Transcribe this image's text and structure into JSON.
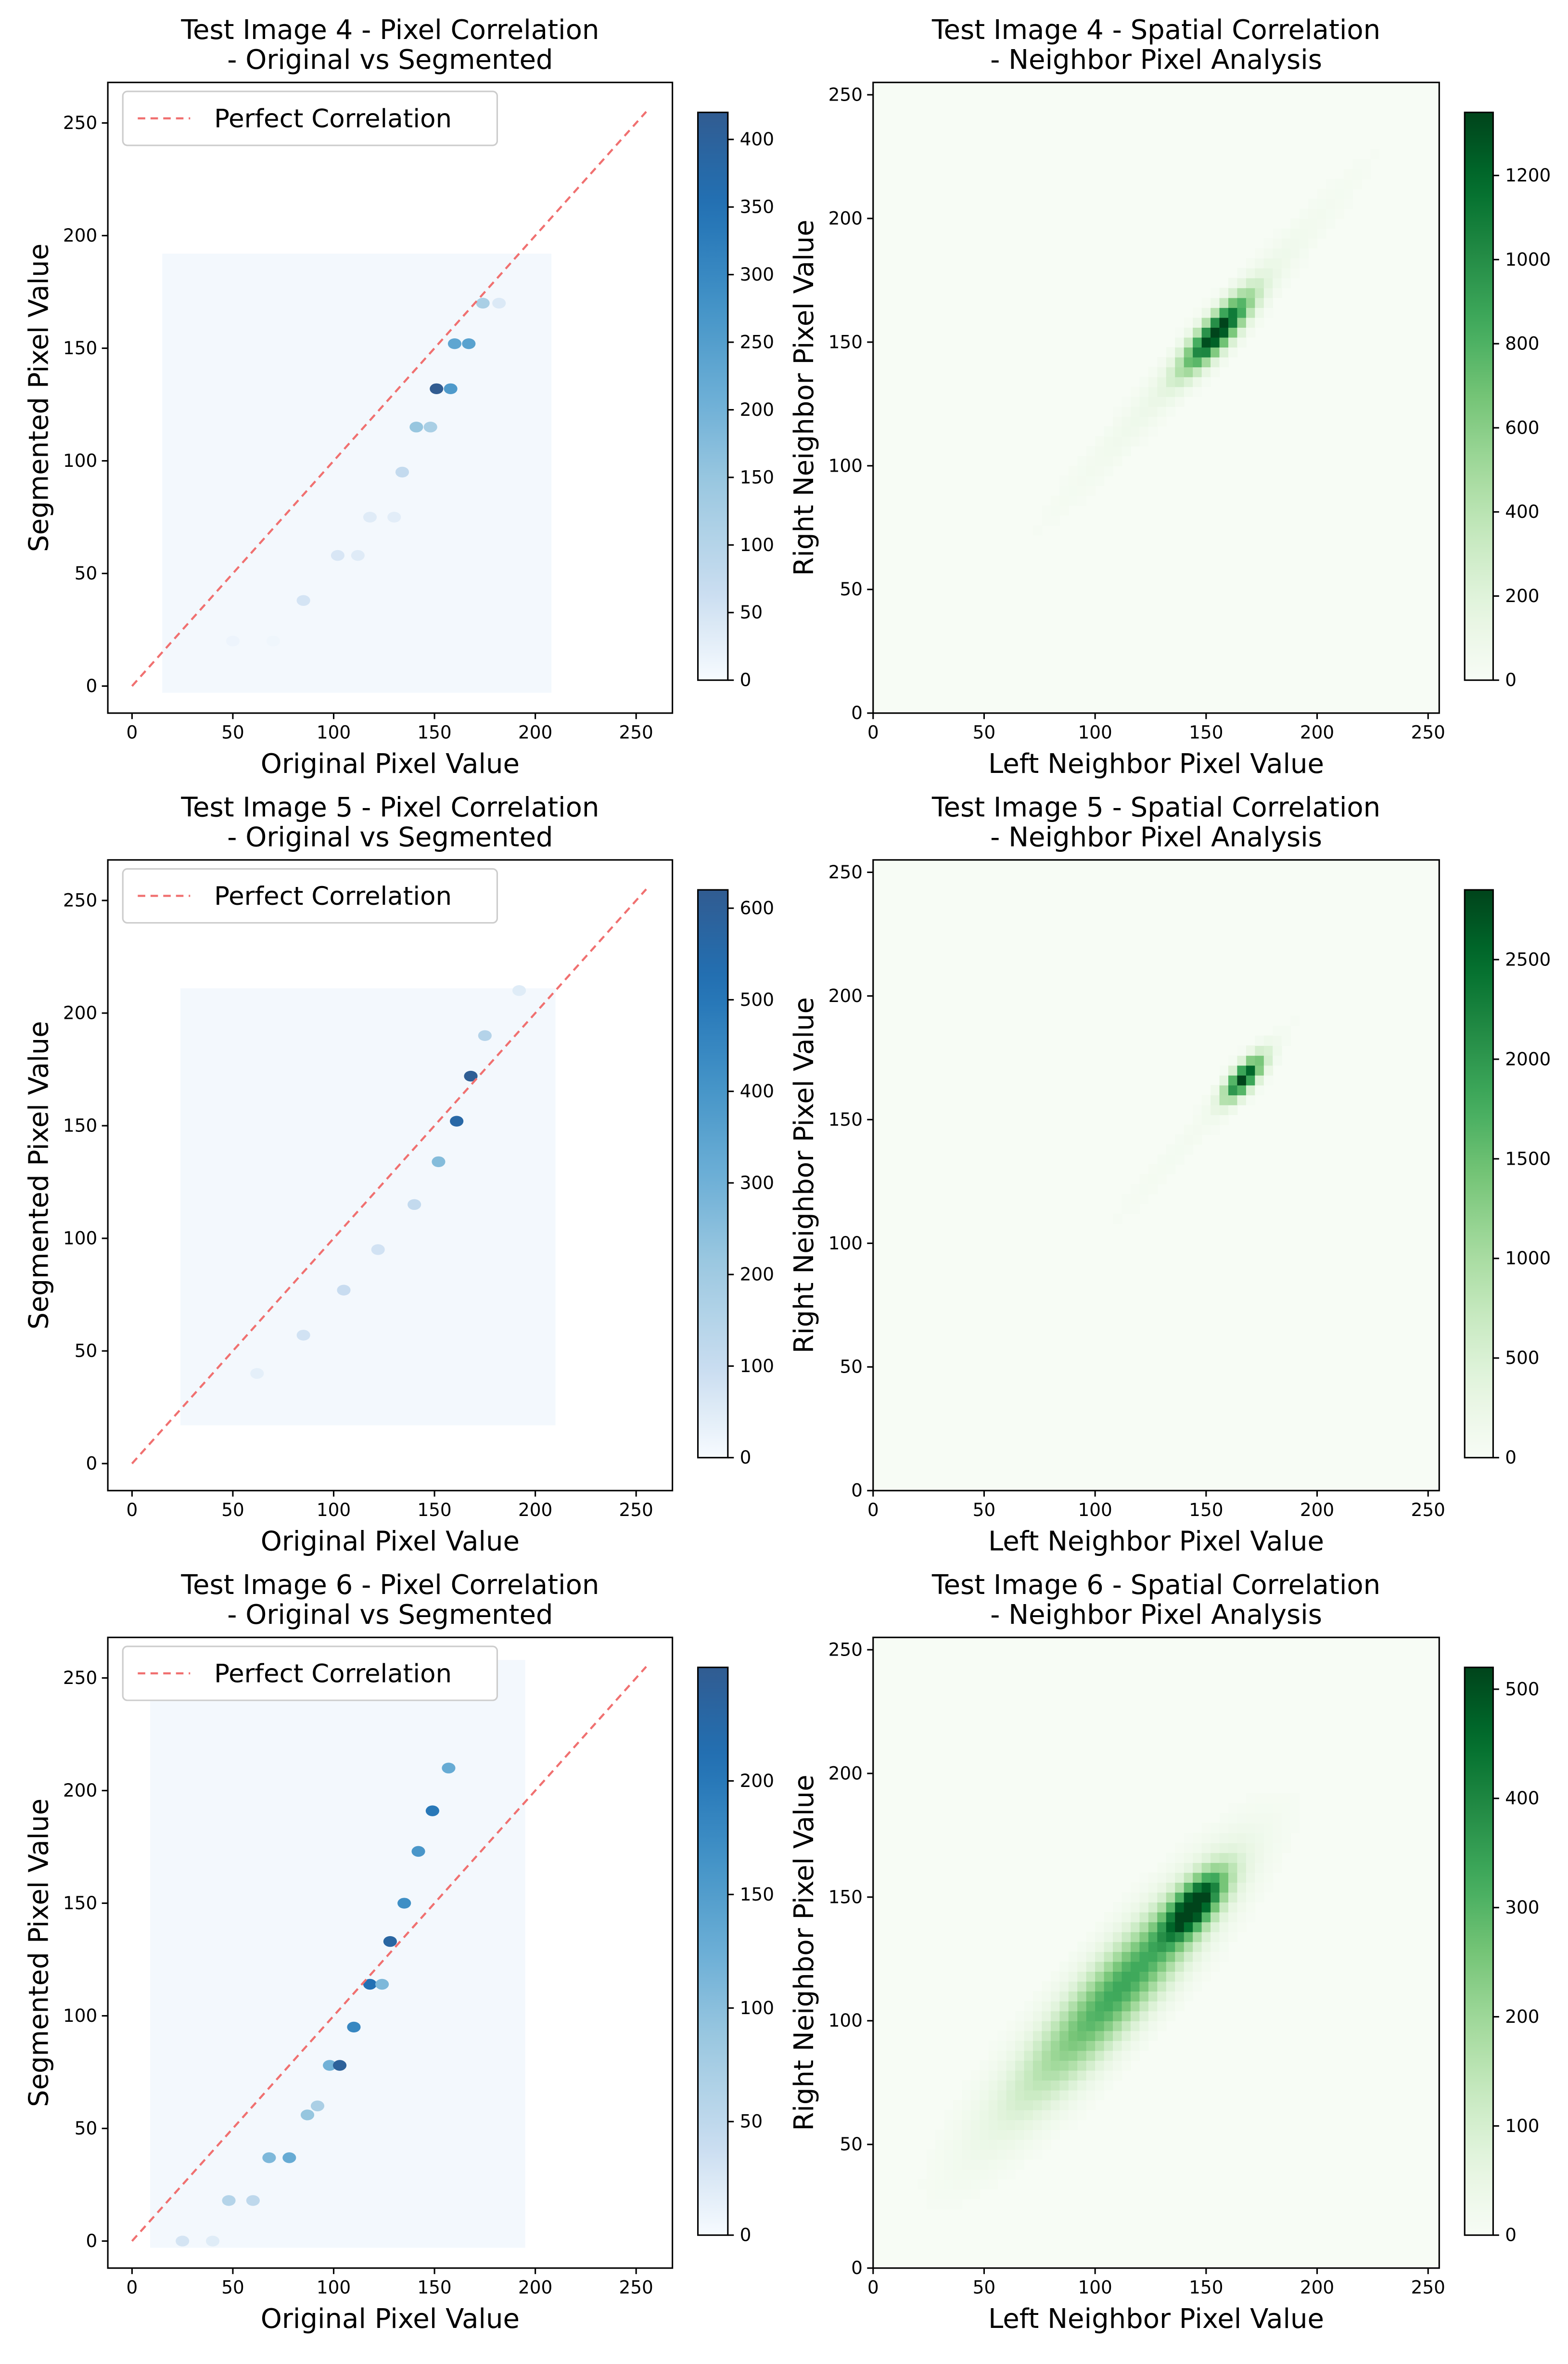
{
  "chart_data": [
    {
      "type": "heatmap",
      "title": "Test Image 4 - Pixel Correlation",
      "subtitle": "- Original vs Segmented",
      "xlabel": "Original Pixel Value",
      "ylabel": "Segmented Pixel Value",
      "xlim": [
        -12,
        268
      ],
      "ylim": [
        -12,
        268
      ],
      "xticks": [
        0,
        50,
        100,
        150,
        200,
        250
      ],
      "yticks": [
        0,
        50,
        100,
        150,
        200,
        250
      ],
      "colormap": "Blues",
      "colorbar": {
        "min": 0,
        "max": 420,
        "ticks": [
          0,
          50,
          100,
          150,
          200,
          250,
          300,
          350,
          400
        ]
      },
      "legend": {
        "label": "Perfect Correlation",
        "position": "upper-left",
        "color": "#f07070"
      },
      "reference_line": {
        "x": [
          0,
          255
        ],
        "y": [
          0,
          255
        ]
      },
      "support": {
        "x": [
          15,
          208
        ],
        "y": [
          -3,
          192
        ]
      },
      "clusters": [
        {
          "x": 50,
          "y": 20,
          "count": 15
        },
        {
          "x": 70,
          "y": 20,
          "count": 12
        },
        {
          "x": 85,
          "y": 38,
          "count": 50
        },
        {
          "x": 102,
          "y": 58,
          "count": 45
        },
        {
          "x": 112,
          "y": 58,
          "count": 35
        },
        {
          "x": 118,
          "y": 75,
          "count": 35
        },
        {
          "x": 130,
          "y": 75,
          "count": 30
        },
        {
          "x": 134,
          "y": 95,
          "count": 75
        },
        {
          "x": 141,
          "y": 115,
          "count": 150
        },
        {
          "x": 148,
          "y": 115,
          "count": 120
        },
        {
          "x": 151,
          "y": 132,
          "count": 420
        },
        {
          "x": 158,
          "y": 132,
          "count": 260
        },
        {
          "x": 160,
          "y": 152,
          "count": 230
        },
        {
          "x": 167,
          "y": 152,
          "count": 240
        },
        {
          "x": 174,
          "y": 170,
          "count": 120
        },
        {
          "x": 182,
          "y": 170,
          "count": 40
        }
      ]
    },
    {
      "type": "heatmap",
      "title": "Test Image 4 - Spatial Correlation",
      "subtitle": "- Neighbor Pixel Analysis",
      "xlabel": "Left Neighbor Pixel Value",
      "ylabel": "Right Neighbor Pixel Value",
      "xlim": [
        0,
        255
      ],
      "ylim": [
        0,
        255
      ],
      "xticks": [
        0,
        50,
        100,
        150,
        200,
        250
      ],
      "yticks": [
        0,
        50,
        100,
        150,
        200,
        250
      ],
      "colormap": "Greens",
      "colorbar": {
        "min": 0,
        "max": 1350,
        "ticks": [
          0,
          200,
          400,
          600,
          800,
          1000,
          1200
        ]
      },
      "components": [
        {
          "cx": 155,
          "cy": 154,
          "sigma_major": 14,
          "sigma_minor": 4,
          "peak": 1350
        },
        {
          "cx": 150,
          "cy": 150,
          "sigma_major": 55,
          "sigma_minor": 5,
          "peak": 110
        }
      ]
    },
    {
      "type": "heatmap",
      "title": "Test Image 5 - Pixel Correlation",
      "subtitle": "- Original vs Segmented",
      "xlabel": "Original Pixel Value",
      "ylabel": "Segmented Pixel Value",
      "xlim": [
        -12,
        268
      ],
      "ylim": [
        -12,
        268
      ],
      "xticks": [
        0,
        50,
        100,
        150,
        200,
        250
      ],
      "yticks": [
        0,
        50,
        100,
        150,
        200,
        250
      ],
      "colormap": "Blues",
      "colorbar": {
        "min": 0,
        "max": 620,
        "ticks": [
          0,
          100,
          200,
          300,
          400,
          500,
          600
        ]
      },
      "legend": {
        "label": "Perfect Correlation",
        "position": "upper-left",
        "color": "#f07070"
      },
      "reference_line": {
        "x": [
          0,
          255
        ],
        "y": [
          0,
          255
        ]
      },
      "support": {
        "x": [
          24,
          210
        ],
        "y": [
          17,
          211
        ]
      },
      "clusters": [
        {
          "x": 62,
          "y": 40,
          "count": 40
        },
        {
          "x": 85,
          "y": 57,
          "count": 80
        },
        {
          "x": 105,
          "y": 77,
          "count": 100
        },
        {
          "x": 122,
          "y": 95,
          "count": 80
        },
        {
          "x": 140,
          "y": 115,
          "count": 110
        },
        {
          "x": 152,
          "y": 134,
          "count": 260
        },
        {
          "x": 161,
          "y": 152,
          "count": 560
        },
        {
          "x": 168,
          "y": 172,
          "count": 610
        },
        {
          "x": 175,
          "y": 190,
          "count": 150
        },
        {
          "x": 192,
          "y": 210,
          "count": 50
        }
      ]
    },
    {
      "type": "heatmap",
      "title": "Test Image 5 - Spatial Correlation",
      "subtitle": "- Neighbor Pixel Analysis",
      "xlabel": "Left Neighbor Pixel Value",
      "ylabel": "Right Neighbor Pixel Value",
      "xlim": [
        0,
        255
      ],
      "ylim": [
        0,
        255
      ],
      "xticks": [
        0,
        50,
        100,
        150,
        200,
        250
      ],
      "yticks": [
        0,
        50,
        100,
        150,
        200,
        250
      ],
      "colormap": "Greens",
      "colorbar": {
        "min": 0,
        "max": 2850,
        "ticks": [
          0,
          500,
          1000,
          1500,
          2000,
          2500
        ]
      },
      "components": [
        {
          "cx": 167,
          "cy": 167,
          "sigma_major": 8,
          "sigma_minor": 3,
          "peak": 2850
        },
        {
          "cx": 150,
          "cy": 150,
          "sigma_major": 45,
          "sigma_minor": 4,
          "peak": 80
        }
      ]
    },
    {
      "type": "heatmap",
      "title": "Test Image 6 - Pixel Correlation",
      "subtitle": "- Original vs Segmented",
      "xlabel": "Original Pixel Value",
      "ylabel": "Segmented Pixel Value",
      "xlim": [
        -12,
        268
      ],
      "ylim": [
        -12,
        268
      ],
      "xticks": [
        0,
        50,
        100,
        150,
        200,
        250
      ],
      "yticks": [
        0,
        50,
        100,
        150,
        200,
        250
      ],
      "colormap": "Blues",
      "colorbar": {
        "min": 0,
        "max": 250,
        "ticks": [
          0,
          50,
          100,
          150,
          200
        ]
      },
      "legend": {
        "label": "Perfect Correlation",
        "position": "upper-left",
        "color": "#f07070"
      },
      "reference_line": {
        "x": [
          0,
          255
        ],
        "y": [
          0,
          255
        ]
      },
      "support": {
        "x": [
          9,
          195
        ],
        "y": [
          -3,
          258
        ]
      },
      "clusters": [
        {
          "x": 25,
          "y": 0,
          "count": 30
        },
        {
          "x": 40,
          "y": 0,
          "count": 20
        },
        {
          "x": 48,
          "y": 18,
          "count": 60
        },
        {
          "x": 60,
          "y": 18,
          "count": 50
        },
        {
          "x": 68,
          "y": 37,
          "count": 110
        },
        {
          "x": 78,
          "y": 37,
          "count": 130
        },
        {
          "x": 87,
          "y": 56,
          "count": 90
        },
        {
          "x": 92,
          "y": 60,
          "count": 70
        },
        {
          "x": 98,
          "y": 78,
          "count": 120
        },
        {
          "x": 103,
          "y": 78,
          "count": 240
        },
        {
          "x": 110,
          "y": 95,
          "count": 180
        },
        {
          "x": 118,
          "y": 114,
          "count": 210
        },
        {
          "x": 124,
          "y": 114,
          "count": 110
        },
        {
          "x": 128,
          "y": 133,
          "count": 230
        },
        {
          "x": 135,
          "y": 150,
          "count": 170
        },
        {
          "x": 142,
          "y": 173,
          "count": 160
        },
        {
          "x": 149,
          "y": 191,
          "count": 200
        },
        {
          "x": 157,
          "y": 210,
          "count": 130
        }
      ]
    },
    {
      "type": "heatmap",
      "title": "Test Image 6 - Spatial Correlation",
      "subtitle": "- Neighbor Pixel Analysis",
      "xlabel": "Left Neighbor Pixel Value",
      "ylabel": "Right Neighbor Pixel Value",
      "xlim": [
        0,
        255
      ],
      "ylim": [
        0,
        255
      ],
      "xticks": [
        0,
        50,
        100,
        150,
        200,
        250
      ],
      "yticks": [
        0,
        50,
        100,
        150,
        200,
        250
      ],
      "colormap": "Greens",
      "colorbar": {
        "min": 0,
        "max": 520,
        "ticks": [
          0,
          100,
          200,
          300,
          400,
          500
        ]
      },
      "components": [
        {
          "cx": 145,
          "cy": 147,
          "sigma_major": 12,
          "sigma_minor": 5,
          "peak": 470
        },
        {
          "cx": 120,
          "cy": 122,
          "sigma_major": 36,
          "sigma_minor": 9,
          "peak": 230
        },
        {
          "cx": 95,
          "cy": 97,
          "sigma_major": 40,
          "sigma_minor": 10,
          "peak": 140
        }
      ]
    }
  ]
}
